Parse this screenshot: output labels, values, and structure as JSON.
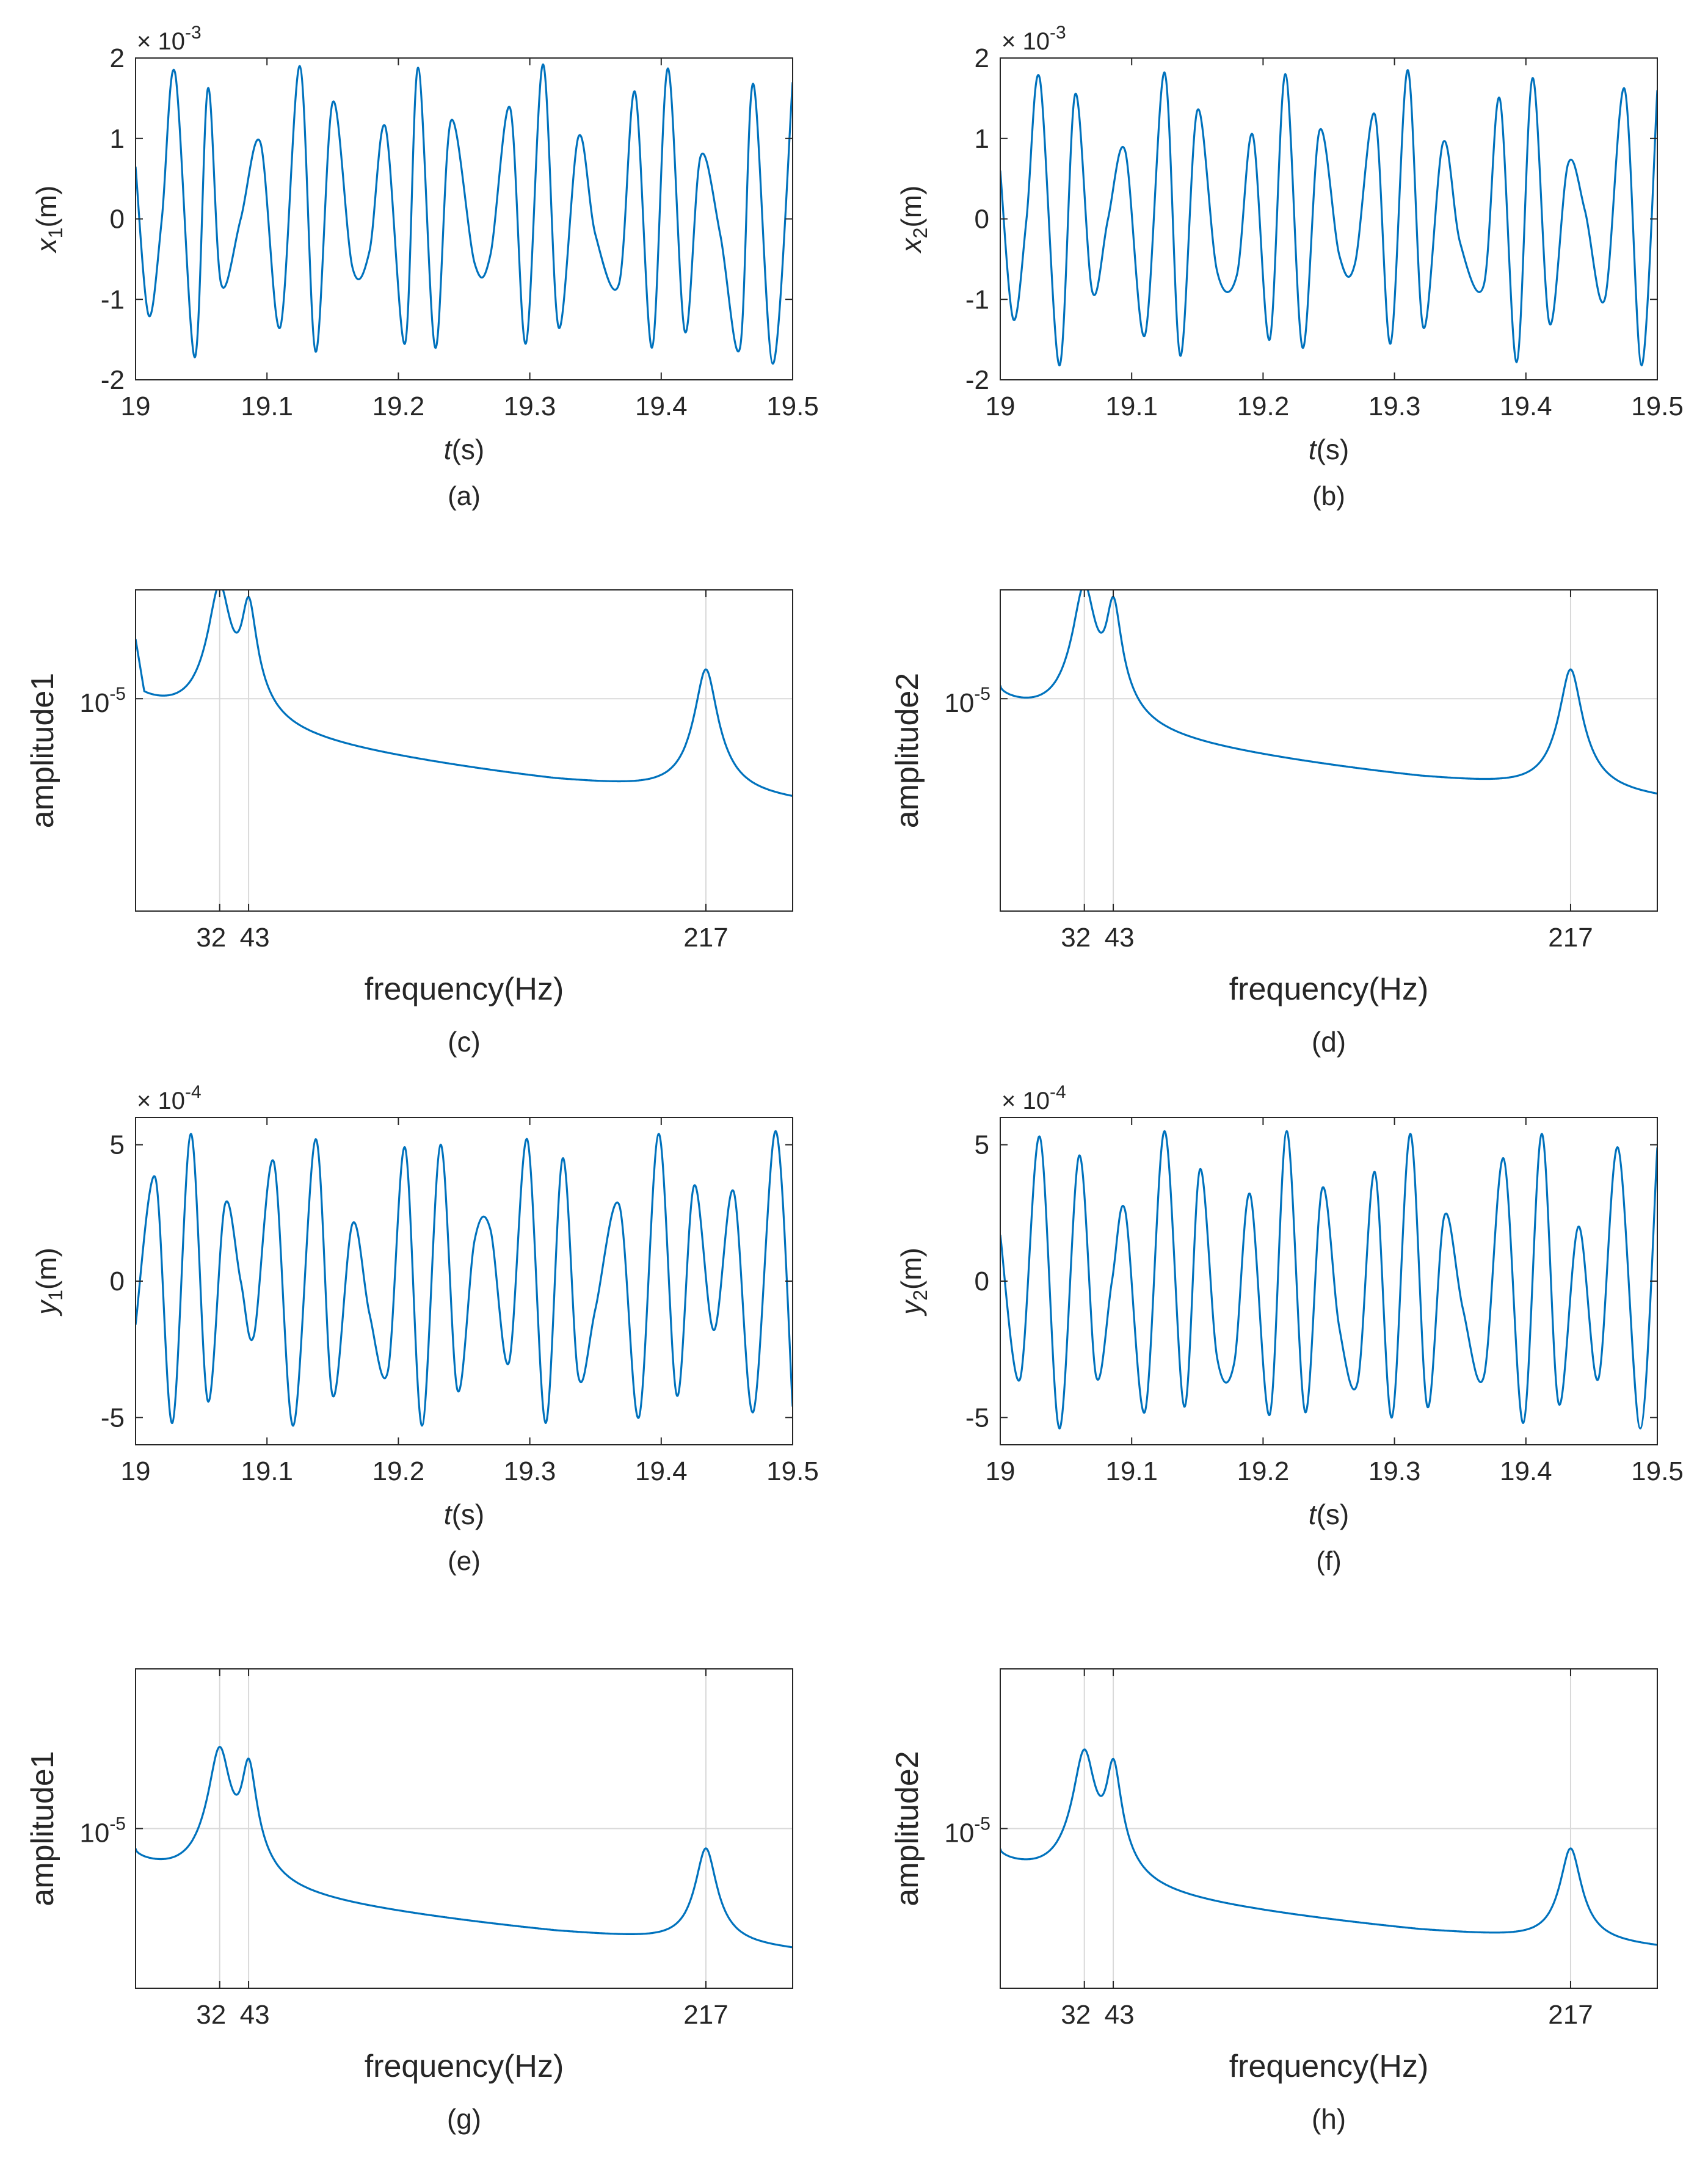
{
  "colors": {
    "line": "#0072BD",
    "grid": "#d9d9d9",
    "axis": "#262626",
    "text": "#262626"
  },
  "chart_data": [
    {
      "id": "a",
      "type": "line",
      "caption": "(a)",
      "ylabel": "x",
      "ysub": "1",
      "yunit": "(m)",
      "xlabel_italic": "t",
      "xlabel_rest": "(s)",
      "exponent": "-3",
      "xlim": [
        19,
        19.5
      ],
      "ylim": [
        -2,
        2
      ],
      "xticks": [
        19,
        19.1,
        19.2,
        19.3,
        19.4,
        19.5
      ],
      "xtick_labels": [
        "19",
        "19.1",
        "19.2",
        "19.3",
        "19.4",
        "19.5"
      ],
      "yticks": [
        2,
        1,
        0,
        -1,
        -2
      ],
      "ytick_labels": [
        "2",
        "1",
        "0",
        "-1",
        "-2"
      ],
      "series": [
        {
          "name": "x1",
          "x": [
            19.0,
            19.01,
            19.02,
            19.03,
            19.045,
            19.055,
            19.065,
            19.08,
            19.095,
            19.11,
            19.125,
            19.137,
            19.15,
            19.165,
            19.178,
            19.19,
            19.205,
            19.215,
            19.228,
            19.24,
            19.258,
            19.27,
            19.285,
            19.297,
            19.31,
            19.322,
            19.337,
            19.35,
            19.368,
            19.38,
            19.393,
            19.405,
            19.418,
            19.43,
            19.445,
            19.46,
            19.47,
            19.485,
            19.5
          ],
          "y": [
            0.65,
            -1.2,
            0.0,
            1.82,
            -1.72,
            1.62,
            -0.8,
            0.0,
            0.95,
            -1.35,
            1.9,
            -1.65,
            1.45,
            -0.6,
            -0.4,
            1.15,
            -1.55,
            1.88,
            -1.6,
            1.22,
            -0.55,
            -0.45,
            1.38,
            -1.55,
            1.92,
            -1.35,
            1.02,
            -0.2,
            -0.8,
            1.58,
            -1.6,
            1.87,
            -1.4,
            0.78,
            -0.2,
            -1.6,
            1.68,
            -1.8,
            1.7
          ]
        }
      ]
    },
    {
      "id": "b",
      "type": "line",
      "caption": "(b)",
      "ylabel": "x",
      "ysub": "2",
      "yunit": "(m)",
      "xlabel_italic": "t",
      "xlabel_rest": "(s)",
      "exponent": "-3",
      "xlim": [
        19,
        19.5
      ],
      "ylim": [
        -2,
        2
      ],
      "xticks": [
        19,
        19.1,
        19.2,
        19.3,
        19.4,
        19.5
      ],
      "xtick_labels": [
        "19",
        "19.1",
        "19.2",
        "19.3",
        "19.4",
        "19.5"
      ],
      "yticks": [
        2,
        1,
        0,
        -1,
        -2
      ],
      "ytick_labels": [
        "2",
        "1",
        "0",
        "-1",
        "-2"
      ],
      "series": [
        {
          "name": "x2",
          "x": [
            19.0,
            19.01,
            19.02,
            19.03,
            19.045,
            19.057,
            19.07,
            19.082,
            19.095,
            19.11,
            19.125,
            19.137,
            19.15,
            19.165,
            19.18,
            19.192,
            19.205,
            19.217,
            19.23,
            19.243,
            19.258,
            19.27,
            19.285,
            19.297,
            19.31,
            19.322,
            19.337,
            19.35,
            19.368,
            19.38,
            19.393,
            19.405,
            19.418,
            19.432,
            19.445,
            19.46,
            19.475,
            19.488,
            19.5
          ],
          "y": [
            0.6,
            -1.25,
            0.0,
            1.75,
            -1.82,
            1.55,
            -0.9,
            0.0,
            0.85,
            -1.45,
            1.82,
            -1.7,
            1.35,
            -0.65,
            -0.7,
            1.05,
            -1.5,
            1.8,
            -1.6,
            1.1,
            -0.45,
            -0.55,
            1.3,
            -1.55,
            1.85,
            -1.35,
            0.95,
            -0.3,
            -0.82,
            1.5,
            -1.78,
            1.75,
            -1.3,
            0.68,
            0.1,
            -1.0,
            1.62,
            -1.82,
            1.6
          ]
        }
      ]
    },
    {
      "id": "c",
      "type": "line",
      "caption": "(c)",
      "yscale": "log",
      "ylabel_plain": "amplitude1",
      "xlabel_plain": "frequency(Hz)",
      "xlim": [
        0,
        250
      ],
      "ylim_log": [
        -6.6,
        -4.18
      ],
      "xticks": [
        32,
        43,
        217
      ],
      "xtick_labels": [
        "32",
        "43",
        "217"
      ],
      "yticks_log": [
        -5
      ],
      "ytick_base": "10",
      "ytick_exps": [
        "-5"
      ],
      "peaks": [
        {
          "f": 32,
          "amp_log": -4.15,
          "width": 3.5
        },
        {
          "f": 43,
          "amp_log": -4.28,
          "width": 2.5
        },
        {
          "f": 217,
          "amp_log": -4.78,
          "width": 3.5
        }
      ],
      "baseline": {
        "start_log": -4.9,
        "mid_f": 160,
        "mid_log": -5.62,
        "end_log": -5.78
      },
      "left_spike_log": -4.55
    },
    {
      "id": "d",
      "type": "line",
      "caption": "(d)",
      "yscale": "log",
      "ylabel_plain": "amplitude2",
      "xlabel_plain": "frequency(Hz)",
      "xlim": [
        0,
        250
      ],
      "ylim_log": [
        -6.6,
        -4.18
      ],
      "xticks": [
        32,
        43,
        217
      ],
      "xtick_labels": [
        "32",
        "43",
        "217"
      ],
      "yticks_log": [
        -5
      ],
      "ytick_base": "10",
      "ytick_exps": [
        "-5"
      ],
      "peaks": [
        {
          "f": 32,
          "amp_log": -4.15,
          "width": 3.5
        },
        {
          "f": 43,
          "amp_log": -4.28,
          "width": 2.5
        },
        {
          "f": 217,
          "amp_log": -4.78,
          "width": 3.5
        }
      ],
      "baseline": {
        "start_log": -4.93,
        "mid_f": 160,
        "mid_log": -5.6,
        "end_log": -5.76
      }
    },
    {
      "id": "e",
      "type": "line",
      "caption": "(e)",
      "ylabel": "y",
      "ysub": "1",
      "yunit": "(m)",
      "xlabel_italic": "t",
      "xlabel_rest": "(s)",
      "exponent": "-4",
      "xlim": [
        19,
        19.5
      ],
      "ylim": [
        -6,
        6
      ],
      "xticks": [
        19,
        19.1,
        19.2,
        19.3,
        19.4,
        19.5
      ],
      "xtick_labels": [
        "19",
        "19.1",
        "19.2",
        "19.3",
        "19.4",
        "19.5"
      ],
      "yticks": [
        5,
        0,
        -5
      ],
      "ytick_labels": [
        "5",
        "0",
        "-5"
      ],
      "series": [
        {
          "name": "y1",
          "x": [
            19.0,
            19.015,
            19.028,
            19.042,
            19.055,
            19.068,
            19.08,
            19.09,
            19.105,
            19.12,
            19.137,
            19.15,
            19.165,
            19.178,
            19.192,
            19.205,
            19.218,
            19.232,
            19.245,
            19.258,
            19.27,
            19.284,
            19.298,
            19.312,
            19.325,
            19.337,
            19.35,
            19.368,
            19.383,
            19.398,
            19.412,
            19.425,
            19.44,
            19.455,
            19.47,
            19.487,
            19.5
          ],
          "y": [
            -1.6,
            3.8,
            -5.2,
            5.4,
            -4.4,
            2.8,
            0.0,
            -2.0,
            4.4,
            -5.3,
            5.2,
            -4.2,
            2.1,
            -1.2,
            -3.3,
            4.9,
            -5.3,
            5.0,
            -4.0,
            1.5,
            1.9,
            -3.0,
            5.2,
            -5.2,
            4.5,
            -3.5,
            -1.0,
            2.8,
            -5.0,
            5.4,
            -4.2,
            3.5,
            -1.8,
            3.3,
            -4.8,
            5.5,
            -4.6
          ]
        }
      ]
    },
    {
      "id": "f",
      "type": "line",
      "caption": "(f)",
      "ylabel": "y",
      "ysub": "2",
      "yunit": "(m)",
      "xlabel_italic": "t",
      "xlabel_rest": "(s)",
      "exponent": "-4",
      "xlim": [
        19,
        19.5
      ],
      "ylim": [
        -6,
        6
      ],
      "xticks": [
        19,
        19.1,
        19.2,
        19.3,
        19.4,
        19.5
      ],
      "xtick_labels": [
        "19",
        "19.1",
        "19.2",
        "19.3",
        "19.4",
        "19.5"
      ],
      "yticks": [
        5,
        0,
        -5
      ],
      "ytick_labels": [
        "5",
        "0",
        "-5"
      ],
      "series": [
        {
          "name": "y2",
          "x": [
            19.0,
            19.015,
            19.03,
            19.045,
            19.06,
            19.073,
            19.085,
            19.095,
            19.11,
            19.125,
            19.14,
            19.152,
            19.165,
            19.178,
            19.19,
            19.205,
            19.218,
            19.232,
            19.245,
            19.258,
            19.272,
            19.285,
            19.298,
            19.312,
            19.325,
            19.338,
            19.352,
            19.368,
            19.383,
            19.398,
            19.412,
            19.425,
            19.44,
            19.455,
            19.47,
            19.487,
            19.5
          ],
          "y": [
            1.7,
            -3.6,
            5.3,
            -5.4,
            4.6,
            -3.5,
            0.0,
            2.6,
            -4.8,
            5.5,
            -4.6,
            4.1,
            -2.8,
            -3.0,
            3.2,
            -4.9,
            5.5,
            -4.8,
            3.4,
            -1.7,
            -3.7,
            4.0,
            -5.0,
            5.4,
            -4.6,
            2.4,
            -1.0,
            -3.5,
            4.5,
            -5.2,
            5.4,
            -4.5,
            2.0,
            -3.6,
            4.9,
            -5.4,
            4.9
          ]
        }
      ]
    },
    {
      "id": "g",
      "type": "line",
      "caption": "(g)",
      "yscale": "log",
      "ylabel_plain": "amplitude1",
      "xlabel_plain": "frequency(Hz)",
      "xlim": [
        0,
        250
      ],
      "ylim_log": [
        -6.2,
        -3.8
      ],
      "xticks": [
        32,
        43,
        217
      ],
      "xtick_labels": [
        "32",
        "43",
        "217"
      ],
      "yticks_log": [
        -5
      ],
      "ytick_base": "10",
      "ytick_exps": [
        "-5"
      ],
      "peaks": [
        {
          "f": 32,
          "amp_log": -4.4,
          "width": 3.5
        },
        {
          "f": 43,
          "amp_log": -4.52,
          "width": 2.5
        },
        {
          "f": 217,
          "amp_log": -5.15,
          "width": 3.5
        }
      ],
      "baseline": {
        "start_log": -5.18,
        "mid_f": 160,
        "mid_log": -5.78,
        "end_log": -5.92
      }
    },
    {
      "id": "h",
      "type": "line",
      "caption": "(h)",
      "yscale": "log",
      "ylabel_plain": "amplitude2",
      "xlabel_plain": "frequency(Hz)",
      "xlim": [
        0,
        250
      ],
      "ylim_log": [
        -6.2,
        -3.8
      ],
      "xticks": [
        32,
        43,
        217
      ],
      "xtick_labels": [
        "32",
        "43",
        "217"
      ],
      "yticks_log": [
        -5
      ],
      "ytick_base": "10",
      "ytick_exps": [
        "-5"
      ],
      "peaks": [
        {
          "f": 32,
          "amp_log": -4.42,
          "width": 3.5
        },
        {
          "f": 43,
          "amp_log": -4.52,
          "width": 2.5
        },
        {
          "f": 217,
          "amp_log": -5.15,
          "width": 3.5
        }
      ],
      "baseline": {
        "start_log": -5.18,
        "mid_f": 160,
        "mid_log": -5.77,
        "end_log": -5.9
      }
    }
  ]
}
